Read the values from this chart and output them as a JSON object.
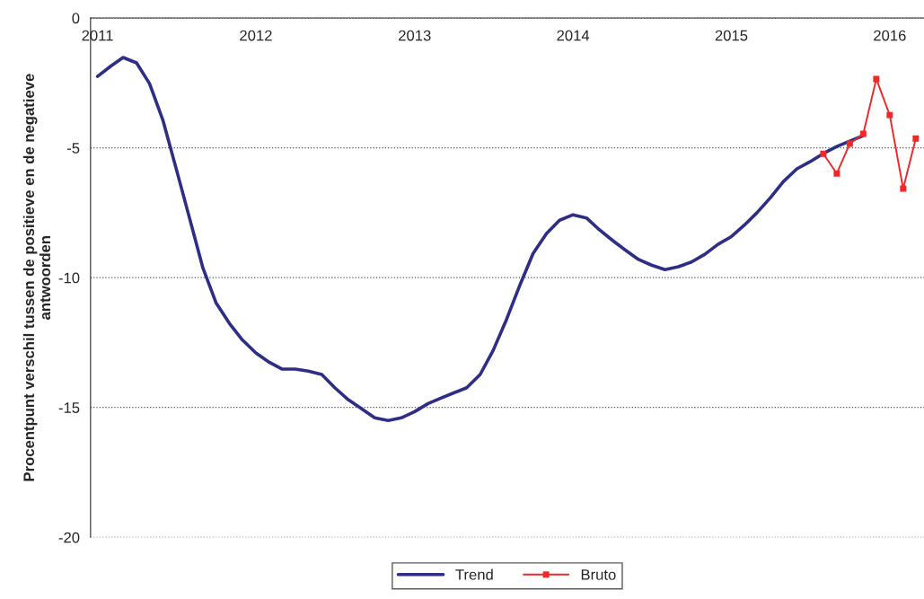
{
  "chart_data": {
    "type": "line",
    "ylabel": "Procentpunt verschil tussen de positieve en de negatieve\nantwoorden",
    "x": [
      "2011-01",
      "2011-02",
      "2011-03",
      "2011-04",
      "2011-05",
      "2011-06",
      "2011-07",
      "2011-08",
      "2011-09",
      "2011-10",
      "2011-11",
      "2011-12",
      "2012-01",
      "2012-02",
      "2012-03",
      "2012-04",
      "2012-05",
      "2012-06",
      "2012-07",
      "2012-08",
      "2012-09",
      "2012-10",
      "2012-11",
      "2012-12",
      "2013-01",
      "2013-02",
      "2013-03",
      "2013-04",
      "2013-05",
      "2013-06",
      "2013-07",
      "2013-08",
      "2013-09",
      "2013-10",
      "2013-11",
      "2013-12",
      "2014-01",
      "2014-02",
      "2014-03",
      "2014-04",
      "2014-05",
      "2014-06",
      "2014-07",
      "2014-08",
      "2014-09",
      "2014-10",
      "2014-11",
      "2014-12",
      "2015-01",
      "2015-02",
      "2015-03",
      "2015-04",
      "2015-05",
      "2015-06",
      "2015-07",
      "2015-08",
      "2015-09",
      "2015-10",
      "2015-11"
    ],
    "series": [
      {
        "name": "Trend",
        "color": "#2e2e86",
        "marker": "none",
        "values": [
          -2.25,
          -1.85,
          -1.52,
          -1.73,
          -2.53,
          -3.95,
          -5.78,
          -7.7,
          -9.63,
          -10.96,
          -11.76,
          -12.4,
          -12.9,
          -13.26,
          -13.52,
          -13.52,
          -13.6,
          -13.73,
          -14.24,
          -14.7,
          -15.05,
          -15.4,
          -15.5,
          -15.4,
          -15.16,
          -14.85,
          -14.65,
          -14.44,
          -14.24,
          -13.73,
          -12.8,
          -11.6,
          -10.27,
          -9.07,
          -8.3,
          -7.79,
          -7.58,
          -7.7,
          -8.13,
          -8.55,
          -8.93,
          -9.3,
          -9.52,
          -9.69,
          -9.58,
          -9.4,
          -9.1,
          -8.72,
          -8.42,
          -7.96,
          -7.5,
          -6.92,
          -6.3,
          -5.81,
          -5.54,
          -5.22,
          -4.95,
          -4.74,
          -4.53
        ]
      },
      {
        "name": "Bruto",
        "color": "#f02828",
        "marker": "square",
        "x": [
          "2015-08",
          "2015-09",
          "2015-10",
          "2015-11",
          "2015-12",
          "2016-01",
          "2016-02",
          "2016-03"
        ],
        "values": [
          -5.23,
          -5.99,
          -4.84,
          -4.46,
          -2.35,
          -3.74,
          -6.57,
          -4.64
        ]
      }
    ],
    "xlim": [
      "2010-12-16",
      "2016-03-20"
    ],
    "xticks": [
      {
        "value": "2011-01",
        "label": "2011"
      },
      {
        "value": "2012-01",
        "label": "2012"
      },
      {
        "value": "2013-01",
        "label": "2013"
      },
      {
        "value": "2014-01",
        "label": "2014"
      },
      {
        "value": "2015-01",
        "label": "2015"
      },
      {
        "value": "2016-01",
        "label": "2016"
      }
    ],
    "ylim": [
      -20,
      0
    ],
    "yticks": [
      0,
      -5,
      -10,
      -15,
      -20
    ],
    "grid": "y",
    "legend": "bottom",
    "line_style": "solid"
  }
}
